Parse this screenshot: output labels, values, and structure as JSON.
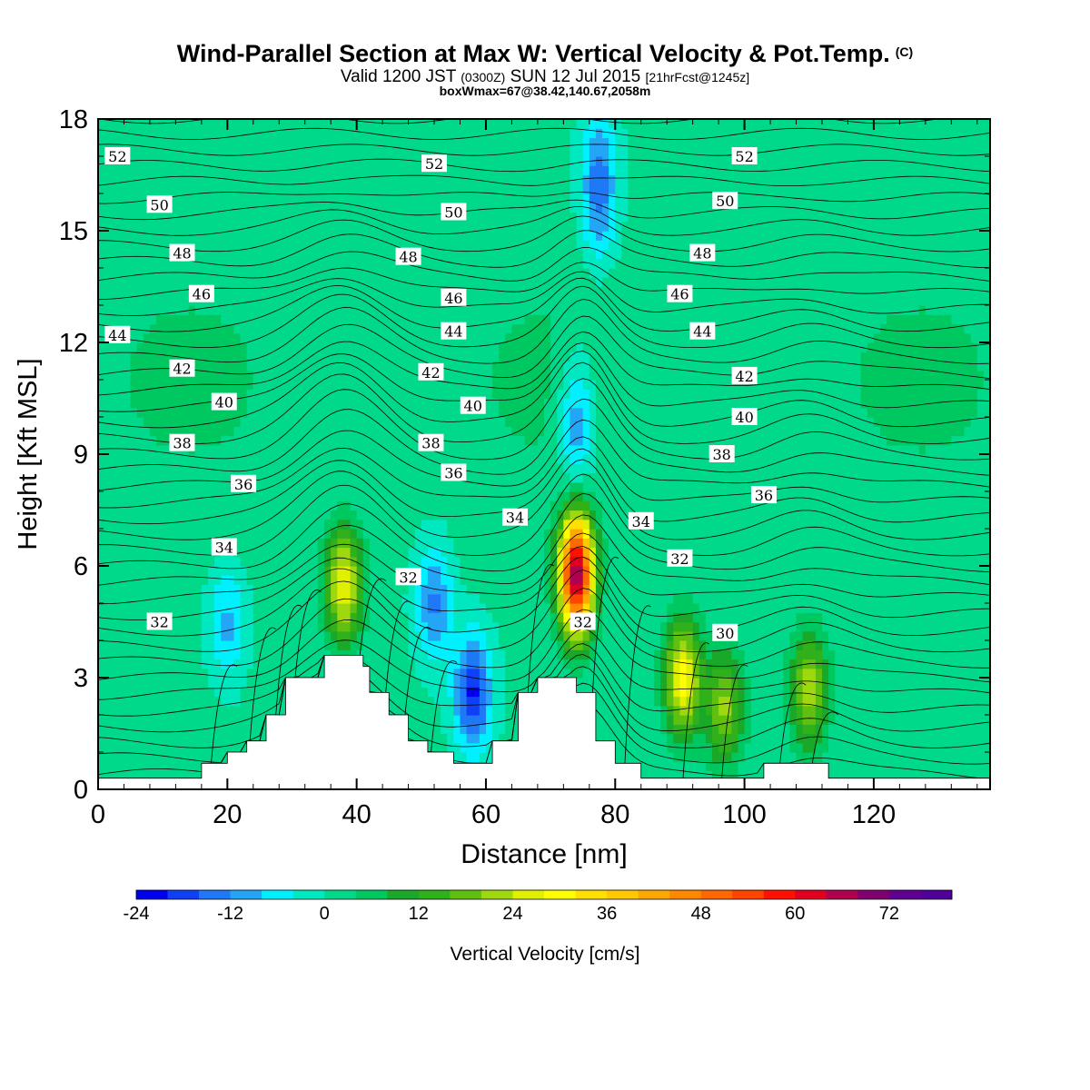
{
  "header": {
    "title": "Wind-Parallel Section at Max W: Vertical Velocity & Pot.Temp.",
    "copyright": "(C)",
    "subtitle_a": "Valid 1200 JST",
    "subtitle_b": "(0300Z)",
    "subtitle_c": "SUN 12 Jul 2015",
    "subtitle_d": "[21hrFcst@1245z]",
    "box_info": "boxWmax=67@38.42,140.67,2058m"
  },
  "chart_data": {
    "type": "heatmap",
    "xlabel": "Distance [nm]",
    "ylabel": "Height [Kft MSL]",
    "xlim": [
      0,
      138
    ],
    "ylim": [
      0,
      18
    ],
    "x_ticks": [
      "0",
      "20",
      "40",
      "60",
      "80",
      "100",
      "120"
    ],
    "y_ticks": [
      "0",
      "3",
      "6",
      "9",
      "12",
      "15",
      "18"
    ],
    "colorbar": {
      "label": "Vertical Velocity [cm/s]",
      "tick_labels": [
        "-24",
        "-12",
        "0",
        "12",
        "24",
        "36",
        "48",
        "60",
        "72"
      ],
      "min": -24,
      "max": 80,
      "step": 4,
      "colors": [
        "#0000ee",
        "#0f40f5",
        "#1f78f5",
        "#25a5f5",
        "#00f0ff",
        "#00e8c0",
        "#00d88a",
        "#00c860",
        "#1aa828",
        "#30b01a",
        "#60c010",
        "#a0d810",
        "#e0f000",
        "#ffff00",
        "#ffe000",
        "#ffc800",
        "#ffa800",
        "#ff8800",
        "#ff6800",
        "#ff4400",
        "#ff1000",
        "#e00020",
        "#b00050",
        "#800070",
        "#600090",
        "#500098"
      ]
    },
    "terrain_top_kft": [
      {
        "x": 16,
        "z": 0.7
      },
      {
        "x": 20,
        "z": 1.0
      },
      {
        "x": 23,
        "z": 1.3
      },
      {
        "x": 26,
        "z": 2.0
      },
      {
        "x": 29,
        "z": 3.0
      },
      {
        "x": 32,
        "z": 3.0
      },
      {
        "x": 35,
        "z": 3.6
      },
      {
        "x": 41,
        "z": 3.3
      },
      {
        "x": 42,
        "z": 2.6
      },
      {
        "x": 45,
        "z": 2.0
      },
      {
        "x": 48,
        "z": 1.3
      },
      {
        "x": 51,
        "z": 1.0
      },
      {
        "x": 55,
        "z": 0.7
      },
      {
        "x": 61,
        "z": 1.3
      },
      {
        "x": 65,
        "z": 2.6
      },
      {
        "x": 68,
        "z": 3.0
      },
      {
        "x": 74,
        "z": 2.6
      },
      {
        "x": 77,
        "z": 1.3
      },
      {
        "x": 80,
        "z": 0.7
      },
      {
        "x": 84,
        "z": 0.3
      },
      {
        "x": 103,
        "z": 0.7
      },
      {
        "x": 113,
        "z": 0.3
      }
    ],
    "w_centers_cms": [
      {
        "x": 38,
        "z": 5.5,
        "w": 28
      },
      {
        "x": 74,
        "z": 5.8,
        "w": 67
      },
      {
        "x": 90.5,
        "z": 3.0,
        "w": 30
      },
      {
        "x": 97,
        "z": 2.2,
        "w": 20
      },
      {
        "x": 110,
        "z": 2.7,
        "w": 22
      },
      {
        "x": 58,
        "z": 2.6,
        "w": -22
      },
      {
        "x": 52,
        "z": 5.0,
        "w": -14
      },
      {
        "x": 20,
        "z": 4.5,
        "w": -10
      },
      {
        "x": 77.5,
        "z": 16.2,
        "w": -16
      },
      {
        "x": 74,
        "z": 9.8,
        "w": -14
      }
    ],
    "theta_labels_c": [
      {
        "text": "52",
        "x": 3,
        "z": 17.0
      },
      {
        "text": "52",
        "x": 52,
        "z": 16.8
      },
      {
        "text": "52",
        "x": 100,
        "z": 17.0
      },
      {
        "text": "50",
        "x": 9.5,
        "z": 15.7
      },
      {
        "text": "50",
        "x": 55,
        "z": 15.5
      },
      {
        "text": "50",
        "x": 97,
        "z": 15.8
      },
      {
        "text": "48",
        "x": 13,
        "z": 14.4
      },
      {
        "text": "48",
        "x": 48,
        "z": 14.3
      },
      {
        "text": "48",
        "x": 93.5,
        "z": 14.4
      },
      {
        "text": "46",
        "x": 16,
        "z": 13.3
      },
      {
        "text": "46",
        "x": 55,
        "z": 13.2
      },
      {
        "text": "46",
        "x": 90,
        "z": 13.3
      },
      {
        "text": "44",
        "x": 3,
        "z": 12.2
      },
      {
        "text": "44",
        "x": 55,
        "z": 12.3
      },
      {
        "text": "44",
        "x": 93.5,
        "z": 12.3
      },
      {
        "text": "42",
        "x": 13,
        "z": 11.3
      },
      {
        "text": "42",
        "x": 51.5,
        "z": 11.2
      },
      {
        "text": "42",
        "x": 100,
        "z": 11.1
      },
      {
        "text": "40",
        "x": 19.5,
        "z": 10.4
      },
      {
        "text": "40",
        "x": 58,
        "z": 10.3
      },
      {
        "text": "40",
        "x": 100,
        "z": 10.0
      },
      {
        "text": "38",
        "x": 13,
        "z": 9.3
      },
      {
        "text": "38",
        "x": 51.5,
        "z": 9.3
      },
      {
        "text": "38",
        "x": 96.5,
        "z": 9.0
      },
      {
        "text": "36",
        "x": 22.5,
        "z": 8.2
      },
      {
        "text": "36",
        "x": 55,
        "z": 8.5
      },
      {
        "text": "36",
        "x": 103,
        "z": 7.9
      },
      {
        "text": "34",
        "x": 19.5,
        "z": 6.5
      },
      {
        "text": "34",
        "x": 64.5,
        "z": 7.3
      },
      {
        "text": "34",
        "x": 84,
        "z": 7.2
      },
      {
        "text": "32",
        "x": 9.5,
        "z": 4.5
      },
      {
        "text": "32",
        "x": 48,
        "z": 5.7
      },
      {
        "text": "32",
        "x": 90,
        "z": 6.2
      },
      {
        "text": "32",
        "x": 75,
        "z": 4.5
      },
      {
        "text": "30",
        "x": 97,
        "z": 4.2
      }
    ]
  }
}
